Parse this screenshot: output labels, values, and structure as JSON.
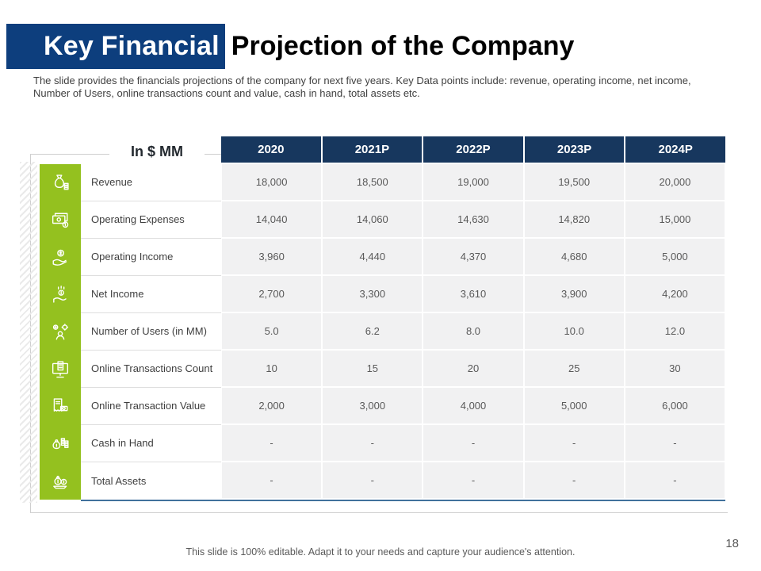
{
  "slide": {
    "title_highlight": "Key Financial",
    "title_rest": "Projection of the Company",
    "description_line1": "The slide provides the financials projections of the company for next five years. Key Data points include: revenue, operating income, net income,",
    "description_line2": "Number of Users, online transactions count and value, cash in hand, total assets etc.",
    "footer": "This slide is 100% editable. Adapt it to your needs and capture your audience's attention.",
    "page_number": "18"
  },
  "table": {
    "unit_label": "In $ MM",
    "columns": [
      "2020",
      "2021P",
      "2022P",
      "2023P",
      "2024P"
    ],
    "rows": [
      {
        "label": "Revenue",
        "icon": "revenue-icon",
        "values": [
          "18,000",
          "18,500",
          "19,000",
          "19,500",
          "20,000"
        ]
      },
      {
        "label": "Operating Expenses",
        "icon": "operating-expenses-icon",
        "values": [
          "14,040",
          "14,060",
          "14,630",
          "14,820",
          "15,000"
        ]
      },
      {
        "label": "Operating Income",
        "icon": "operating-income-icon",
        "values": [
          "3,960",
          "4,440",
          "4,370",
          "4,680",
          "5,000"
        ]
      },
      {
        "label": "Net Income",
        "icon": "net-income-icon",
        "values": [
          "2,700",
          "3,300",
          "3,610",
          "3,900",
          "4,200"
        ]
      },
      {
        "label": "Number of Users (in MM)",
        "icon": "users-icon",
        "values": [
          "5.0",
          "6.2",
          "8.0",
          "10.0",
          "12.0"
        ]
      },
      {
        "label": "Online Transactions Count",
        "icon": "transactions-count-icon",
        "values": [
          "10",
          "15",
          "20",
          "25",
          "30"
        ]
      },
      {
        "label": "Online Transaction Value",
        "icon": "transaction-value-icon",
        "values": [
          "2,000",
          "3,000",
          "4,000",
          "5,000",
          "6,000"
        ]
      },
      {
        "label": "Cash in Hand",
        "icon": "cash-in-hand-icon",
        "values": [
          "-",
          "-",
          "-",
          "-",
          "-"
        ]
      },
      {
        "label": "Total Assets",
        "icon": "total-assets-icon",
        "values": [
          "-",
          "-",
          "-",
          "-",
          "-"
        ]
      }
    ]
  },
  "colors": {
    "title_block_blue": "#0d3e7d",
    "header_navy": "#17375e",
    "icon_column_green": "#94c11f",
    "cell_gray": "#f1f1f2",
    "table_bottom_blue": "#41719c"
  }
}
